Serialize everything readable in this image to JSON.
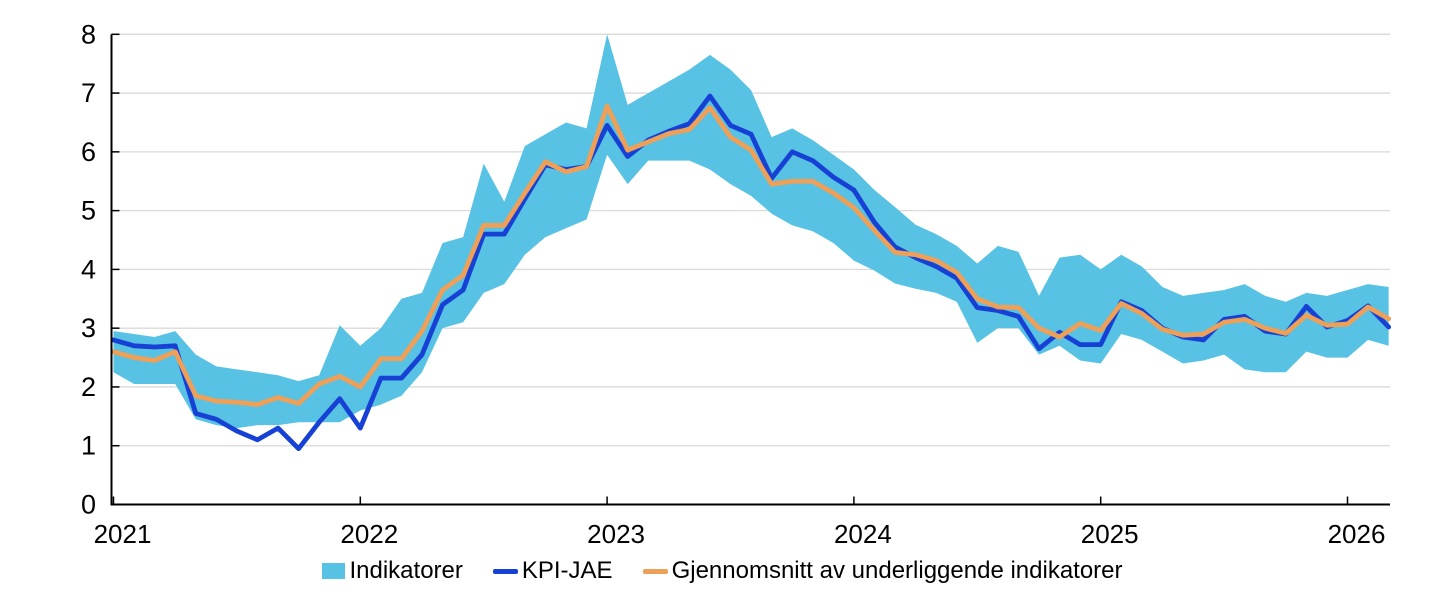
{
  "chart_data": {
    "type": "line+band",
    "title": "",
    "xlabel": "",
    "ylabel": "",
    "ylim": [
      0,
      8
    ],
    "yticks": [
      0,
      1,
      2,
      3,
      4,
      5,
      6,
      7,
      8
    ],
    "xtick_labels": [
      "2021",
      "2022",
      "2023",
      "2024",
      "2025",
      "2026"
    ],
    "grid": true,
    "legend_position": "bottom",
    "months": [
      "2021-01",
      "2021-02",
      "2021-03",
      "2021-04",
      "2021-05",
      "2021-06",
      "2021-07",
      "2021-08",
      "2021-09",
      "2021-10",
      "2021-11",
      "2021-12",
      "2022-01",
      "2022-02",
      "2022-03",
      "2022-04",
      "2022-05",
      "2022-06",
      "2022-07",
      "2022-08",
      "2022-09",
      "2022-10",
      "2022-11",
      "2022-12",
      "2023-01",
      "2023-02",
      "2023-03",
      "2023-04",
      "2023-05",
      "2023-06",
      "2023-07",
      "2023-08",
      "2023-09",
      "2023-10",
      "2023-11",
      "2023-12",
      "2024-01",
      "2024-02",
      "2024-03",
      "2024-04",
      "2024-05",
      "2024-06",
      "2024-07",
      "2024-08",
      "2024-09",
      "2024-10",
      "2024-11",
      "2024-12",
      "2025-01",
      "2025-02",
      "2025-03",
      "2025-04",
      "2025-05",
      "2025-06",
      "2025-07",
      "2025-08",
      "2025-09",
      "2025-10",
      "2025-11",
      "2025-12",
      "2026-01",
      "2026-02",
      "2026-03"
    ],
    "band": {
      "name": "Indikatorer",
      "lower": [
        2.25,
        2.05,
        2.05,
        2.05,
        1.45,
        1.35,
        1.3,
        1.35,
        1.35,
        1.4,
        1.4,
        1.4,
        1.6,
        1.7,
        1.85,
        2.25,
        3.0,
        3.1,
        3.6,
        3.75,
        4.25,
        4.55,
        4.7,
        4.85,
        5.95,
        5.45,
        5.85,
        5.85,
        5.85,
        5.7,
        5.45,
        5.25,
        4.95,
        4.75,
        4.65,
        4.45,
        4.15,
        3.98,
        3.76,
        3.67,
        3.6,
        3.45,
        2.75,
        3.0,
        3.0,
        2.55,
        2.7,
        2.45,
        2.4,
        2.9,
        2.8,
        2.6,
        2.4,
        2.45,
        2.55,
        2.3,
        2.25,
        2.25,
        2.6,
        2.5,
        2.5,
        2.8,
        2.7
      ],
      "upper": [
        2.95,
        2.9,
        2.85,
        2.95,
        2.55,
        2.35,
        2.3,
        2.25,
        2.2,
        2.1,
        2.2,
        3.05,
        2.7,
        3.0,
        3.5,
        3.6,
        4.45,
        4.55,
        5.8,
        5.15,
        6.1,
        6.3,
        6.5,
        6.4,
        8.0,
        6.8,
        7.0,
        7.2,
        7.4,
        7.65,
        7.4,
        7.05,
        6.25,
        6.4,
        6.2,
        5.95,
        5.7,
        5.35,
        5.06,
        4.76,
        4.6,
        4.4,
        4.1,
        4.4,
        4.3,
        3.55,
        4.2,
        4.25,
        4.0,
        4.25,
        4.05,
        3.7,
        3.55,
        3.6,
        3.65,
        3.75,
        3.55,
        3.45,
        3.6,
        3.55,
        3.65,
        3.75,
        3.7
      ]
    },
    "series": [
      {
        "name": "KPI-JAE",
        "values": [
          2.8,
          2.7,
          2.68,
          2.7,
          1.55,
          1.45,
          1.25,
          1.1,
          1.3,
          0.95,
          1.4,
          1.8,
          1.3,
          2.15,
          2.15,
          2.55,
          3.4,
          3.65,
          4.6,
          4.6,
          5.2,
          5.78,
          5.7,
          5.75,
          6.45,
          5.92,
          6.2,
          6.35,
          6.48,
          6.95,
          6.45,
          6.3,
          5.55,
          6.0,
          5.85,
          5.57,
          5.35,
          4.8,
          4.38,
          4.2,
          4.05,
          3.85,
          3.35,
          3.3,
          3.2,
          2.65,
          2.93,
          2.72,
          2.72,
          3.45,
          3.3,
          3.0,
          2.85,
          2.8,
          3.15,
          3.2,
          2.95,
          2.9,
          3.37,
          3.02,
          3.13,
          3.38,
          3.02
        ]
      },
      {
        "name": "Gjennomsnitt av underliggende indikatorer",
        "values": [
          2.6,
          2.5,
          2.45,
          2.6,
          1.85,
          1.76,
          1.74,
          1.7,
          1.82,
          1.72,
          2.05,
          2.18,
          2.0,
          2.48,
          2.48,
          2.95,
          3.65,
          3.9,
          4.75,
          4.75,
          5.3,
          5.83,
          5.66,
          5.75,
          6.78,
          6.03,
          6.17,
          6.31,
          6.38,
          6.75,
          6.25,
          6.03,
          5.45,
          5.5,
          5.5,
          5.3,
          5.05,
          4.66,
          4.29,
          4.25,
          4.15,
          3.95,
          3.5,
          3.36,
          3.35,
          3.0,
          2.85,
          3.08,
          2.96,
          3.42,
          3.25,
          2.98,
          2.88,
          2.9,
          3.1,
          3.15,
          3.0,
          2.91,
          3.22,
          3.05,
          3.07,
          3.36,
          3.16
        ]
      }
    ]
  },
  "legend": {
    "items": [
      {
        "label": "Indikatorer",
        "swatch": "band"
      },
      {
        "label": "KPI-JAE",
        "swatch": "kpi"
      },
      {
        "label": "Gjennomsnitt av underliggende indikatorer",
        "swatch": "avg"
      }
    ]
  },
  "colors": {
    "band": "#57C2E3",
    "kpi": "#1641D4",
    "avg": "#EE9F58",
    "grid": "#D9D9D9",
    "axis": "#000000",
    "text": "#000000"
  }
}
